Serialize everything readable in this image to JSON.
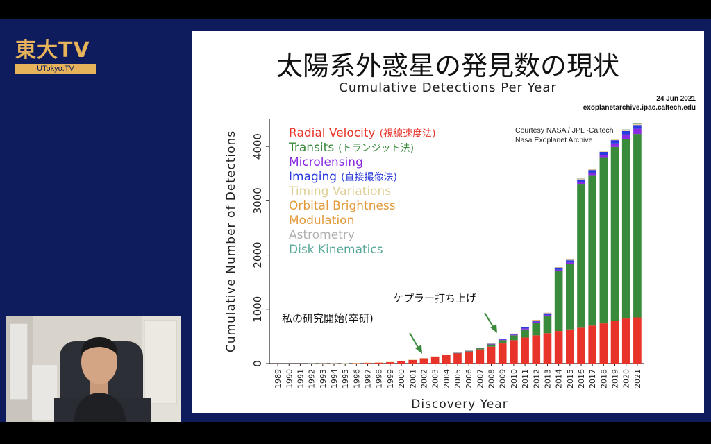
{
  "broadcast": {
    "logo_text": "東大TV",
    "logo_sub": "UTokyo.TV"
  },
  "slide": {
    "title": "太陽系外惑星の発見数の現状",
    "date": "24 Jun 2021",
    "source": "exoplanetarchive.ipac.caltech.edu",
    "credit_line1": "Courtesy NASA / JPL -Caltech",
    "credit_line2": "Nasa Exoplanet Archive",
    "annotation_research": "私の研究開始(卒研)",
    "annotation_kepler": "ケプラー打ち上げ"
  },
  "chart_data": {
    "type": "bar",
    "stacked": true,
    "title": "Cumulative Detections Per Year",
    "xlabel": "Discovery Year",
    "ylabel": "Cumulative Number of Detections",
    "ylim": [
      0,
      4500
    ],
    "yticks": [
      0,
      1000,
      2000,
      3000,
      4000
    ],
    "categories": [
      "1989",
      "1990",
      "1991",
      "1992",
      "1993",
      "1994",
      "1995",
      "1996",
      "1997",
      "1998",
      "1999",
      "2000",
      "2001",
      "2002",
      "2003",
      "2004",
      "2005",
      "2006",
      "2007",
      "2008",
      "2009",
      "2010",
      "2011",
      "2012",
      "2013",
      "2014",
      "2015",
      "2016",
      "2017",
      "2018",
      "2019",
      "2020",
      "2021"
    ],
    "series": [
      {
        "name": "Radial Velocity",
        "label_jp": "(視線速度法)",
        "color": "#e8332a",
        "values": [
          1,
          1,
          1,
          1,
          1,
          2,
          5,
          10,
          15,
          20,
          30,
          50,
          70,
          100,
          130,
          160,
          190,
          220,
          260,
          310,
          370,
          430,
          480,
          520,
          560,
          600,
          630,
          660,
          700,
          740,
          790,
          830,
          850
        ]
      },
      {
        "name": "Transits",
        "label_jp": "(トランジット法)",
        "color": "#3a8a3c",
        "values": [
          0,
          0,
          0,
          0,
          0,
          0,
          0,
          0,
          0,
          0,
          0,
          0,
          0,
          0,
          0,
          2,
          5,
          10,
          20,
          40,
          60,
          90,
          150,
          230,
          310,
          1100,
          1200,
          2650,
          2770,
          3050,
          3200,
          3310,
          3380
        ]
      },
      {
        "name": "Microlensing",
        "color": "#8a2be2",
        "values": [
          0,
          0,
          0,
          0,
          0,
          0,
          0,
          0,
          0,
          0,
          0,
          0,
          0,
          0,
          1,
          2,
          3,
          5,
          7,
          9,
          12,
          14,
          17,
          20,
          24,
          28,
          32,
          36,
          45,
          55,
          65,
          80,
          95
        ]
      },
      {
        "name": "Imaging",
        "label_jp": "(直接撮像法)",
        "color": "#2a3adc",
        "values": [
          0,
          0,
          0,
          0,
          0,
          0,
          0,
          0,
          0,
          0,
          0,
          0,
          0,
          0,
          0,
          1,
          2,
          3,
          5,
          8,
          12,
          15,
          20,
          25,
          30,
          35,
          40,
          45,
          50,
          55,
          60,
          65,
          70
        ]
      },
      {
        "name": "Timing Variations",
        "color": "#e8d8a0",
        "values": [
          0,
          0,
          0,
          2,
          2,
          2,
          2,
          2,
          2,
          2,
          2,
          2,
          2,
          2,
          2,
          2,
          3,
          3,
          3,
          4,
          4,
          5,
          6,
          7,
          8,
          9,
          10,
          11,
          12,
          13,
          14,
          16,
          18
        ]
      },
      {
        "name": "Orbital Brightness Modulation",
        "color": "#e49a3a",
        "values": [
          0,
          0,
          0,
          0,
          0,
          0,
          0,
          0,
          0,
          0,
          0,
          0,
          0,
          0,
          0,
          0,
          0,
          0,
          0,
          0,
          0,
          0,
          1,
          2,
          3,
          4,
          5,
          6,
          6,
          7,
          8,
          9,
          9
        ]
      },
      {
        "name": "Astrometry",
        "color": "#b0b0b0",
        "values": [
          0,
          0,
          0,
          0,
          0,
          0,
          0,
          0,
          0,
          0,
          0,
          0,
          0,
          0,
          0,
          0,
          0,
          0,
          0,
          0,
          0,
          0,
          0,
          0,
          1,
          1,
          1,
          1,
          1,
          1,
          1,
          1,
          1
        ]
      },
      {
        "name": "Disk Kinematics",
        "color": "#5aa89a",
        "values": [
          0,
          0,
          0,
          0,
          0,
          0,
          0,
          0,
          0,
          0,
          0,
          0,
          0,
          0,
          0,
          0,
          0,
          0,
          0,
          0,
          0,
          0,
          0,
          0,
          0,
          0,
          0,
          0,
          0,
          0,
          1,
          1,
          1
        ]
      }
    ],
    "legend_placement": "top-left"
  },
  "legend": {
    "rv": "Radial Velocity",
    "rv_jp": "(視線速度法)",
    "transits": "Transits",
    "transits_jp": "(トランジット法)",
    "micro": "Microlensing",
    "imaging": "Imaging",
    "imaging_jp": "(直接撮像法)",
    "timing": "Timing Variations",
    "orbital": "Orbital Brightness",
    "modulation": "Modulation",
    "astrometry": "Astrometry",
    "disk": "Disk Kinematics"
  }
}
